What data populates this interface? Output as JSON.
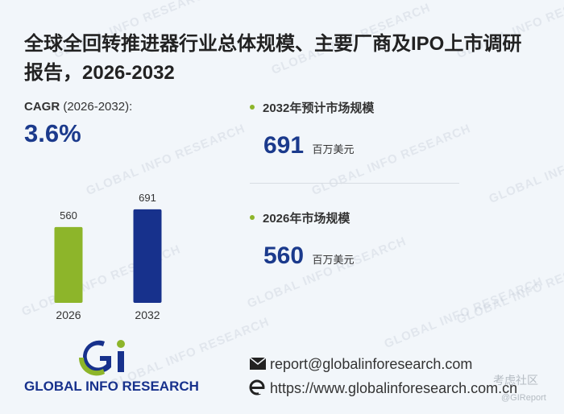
{
  "header": {
    "title_lines": [
      "全球全回转推进器行业总体规模、主要厂商及IPO上市调研",
      "报告，2026-2032"
    ]
  },
  "cagr": {
    "label": "CAGR",
    "period": "(2026-2032):",
    "value": "3.6%"
  },
  "chart_data": {
    "type": "bar",
    "categories": [
      "2026",
      "2032"
    ],
    "values": [
      560,
      691
    ],
    "colors": [
      "#8db52a",
      "#17318c"
    ]
  },
  "stats": [
    {
      "label": "2032年预计市场规模",
      "value": 691,
      "unit": "百万美元"
    },
    {
      "label": "2026年市场规模",
      "value": 560,
      "unit": "百万美元"
    }
  ],
  "logo": {
    "name": "GLOBAL INFO RESEARCH"
  },
  "contact": {
    "email": "report@globalinforesearch.com",
    "website": "https://www.globalinforesearch.com.cn"
  },
  "watermark": "GLOBAL INFO RESEARCH",
  "corner_watermark": {
    "community": "考虑社区",
    "handle": "@GIReport"
  }
}
